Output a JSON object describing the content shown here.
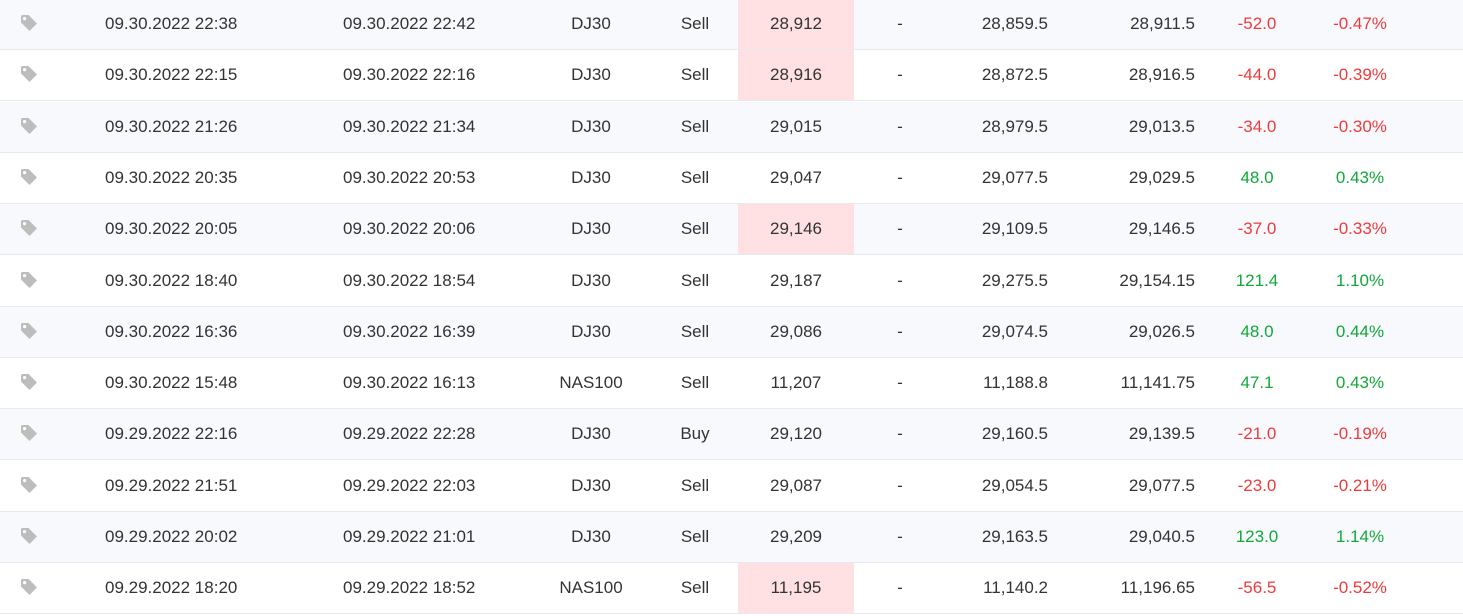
{
  "colors": {
    "negative": "#ef3b3b",
    "positive": "#12a83a",
    "highlight_bg": "#ffe1e3",
    "row_alt_bg": "#f7f9fc"
  },
  "icons": {
    "tag": "tag-icon"
  },
  "trades": [
    {
      "open": "09.30.2022 22:38",
      "close": "09.30.2022 22:42",
      "symbol": "DJ30",
      "action": "Sell",
      "open_price": "28,912",
      "highlight": true,
      "sl": "-",
      "tp": "28,859.5",
      "close_price": "28,911.5",
      "pips": "-52.0",
      "gain": "-0.47%",
      "sign": "neg"
    },
    {
      "open": "09.30.2022 22:15",
      "close": "09.30.2022 22:16",
      "symbol": "DJ30",
      "action": "Sell",
      "open_price": "28,916",
      "highlight": true,
      "sl": "-",
      "tp": "28,872.5",
      "close_price": "28,916.5",
      "pips": "-44.0",
      "gain": "-0.39%",
      "sign": "neg"
    },
    {
      "open": "09.30.2022 21:26",
      "close": "09.30.2022 21:34",
      "symbol": "DJ30",
      "action": "Sell",
      "open_price": "29,015",
      "highlight": false,
      "sl": "-",
      "tp": "28,979.5",
      "close_price": "29,013.5",
      "pips": "-34.0",
      "gain": "-0.30%",
      "sign": "neg"
    },
    {
      "open": "09.30.2022 20:35",
      "close": "09.30.2022 20:53",
      "symbol": "DJ30",
      "action": "Sell",
      "open_price": "29,047",
      "highlight": false,
      "sl": "-",
      "tp": "29,077.5",
      "close_price": "29,029.5",
      "pips": "48.0",
      "gain": "0.43%",
      "sign": "pos"
    },
    {
      "open": "09.30.2022 20:05",
      "close": "09.30.2022 20:06",
      "symbol": "DJ30",
      "action": "Sell",
      "open_price": "29,146",
      "highlight": true,
      "sl": "-",
      "tp": "29,109.5",
      "close_price": "29,146.5",
      "pips": "-37.0",
      "gain": "-0.33%",
      "sign": "neg"
    },
    {
      "open": "09.30.2022 18:40",
      "close": "09.30.2022 18:54",
      "symbol": "DJ30",
      "action": "Sell",
      "open_price": "29,187",
      "highlight": false,
      "sl": "-",
      "tp": "29,275.5",
      "close_price": "29,154.15",
      "pips": "121.4",
      "gain": "1.10%",
      "sign": "pos"
    },
    {
      "open": "09.30.2022 16:36",
      "close": "09.30.2022 16:39",
      "symbol": "DJ30",
      "action": "Sell",
      "open_price": "29,086",
      "highlight": false,
      "sl": "-",
      "tp": "29,074.5",
      "close_price": "29,026.5",
      "pips": "48.0",
      "gain": "0.44%",
      "sign": "pos"
    },
    {
      "open": "09.30.2022 15:48",
      "close": "09.30.2022 16:13",
      "symbol": "NAS100",
      "action": "Sell",
      "open_price": "11,207",
      "highlight": false,
      "sl": "-",
      "tp": "11,188.8",
      "close_price": "11,141.75",
      "pips": "47.1",
      "gain": "0.43%",
      "sign": "pos"
    },
    {
      "open": "09.29.2022 22:16",
      "close": "09.29.2022 22:28",
      "symbol": "DJ30",
      "action": "Buy",
      "open_price": "29,120",
      "highlight": false,
      "sl": "-",
      "tp": "29,160.5",
      "close_price": "29,139.5",
      "pips": "-21.0",
      "gain": "-0.19%",
      "sign": "neg"
    },
    {
      "open": "09.29.2022 21:51",
      "close": "09.29.2022 22:03",
      "symbol": "DJ30",
      "action": "Sell",
      "open_price": "29,087",
      "highlight": false,
      "sl": "-",
      "tp": "29,054.5",
      "close_price": "29,077.5",
      "pips": "-23.0",
      "gain": "-0.21%",
      "sign": "neg"
    },
    {
      "open": "09.29.2022 20:02",
      "close": "09.29.2022 21:01",
      "symbol": "DJ30",
      "action": "Sell",
      "open_price": "29,209",
      "highlight": false,
      "sl": "-",
      "tp": "29,163.5",
      "close_price": "29,040.5",
      "pips": "123.0",
      "gain": "1.14%",
      "sign": "pos"
    },
    {
      "open": "09.29.2022 18:20",
      "close": "09.29.2022 18:52",
      "symbol": "NAS100",
      "action": "Sell",
      "open_price": "11,195",
      "highlight": true,
      "sl": "-",
      "tp": "11,140.2",
      "close_price": "11,196.65",
      "pips": "-56.5",
      "gain": "-0.52%",
      "sign": "neg"
    }
  ]
}
